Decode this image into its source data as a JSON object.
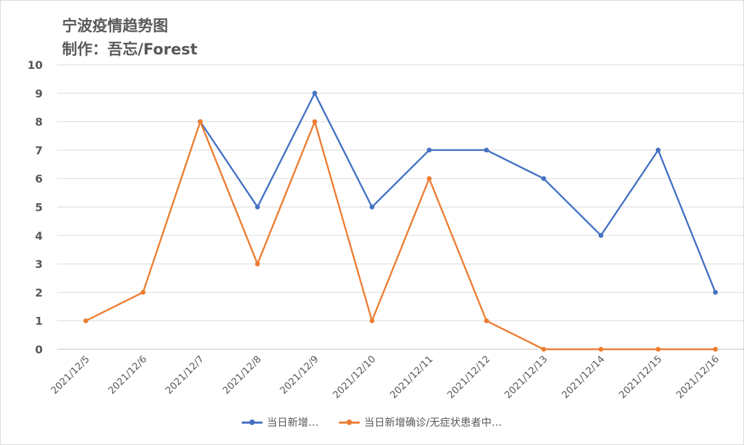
{
  "title": {
    "line1": "宁波疫情趋势图",
    "line2": "制作：吾忘/Forest"
  },
  "chart_data": {
    "type": "line",
    "categories": [
      "2021/12/5",
      "2021/12/6",
      "2021/12/7",
      "2021/12/8",
      "2021/12/9",
      "2021/12/10",
      "2021/12/11",
      "2021/12/12",
      "2021/12/13",
      "2021/12/14",
      "2021/12/15",
      "2021/12/16"
    ],
    "series": [
      {
        "name": "当日新增…",
        "color": "#4472c4",
        "values": [
          null,
          null,
          8,
          5,
          9,
          5,
          7,
          7,
          6,
          4,
          7,
          2
        ]
      },
      {
        "name": "当日新增确诊/无症状患者中…",
        "color": "#ed7d31",
        "values": [
          1,
          2,
          8,
          3,
          8,
          1,
          6,
          1,
          0,
          0,
          0,
          0
        ]
      }
    ],
    "ylim": [
      0,
      10
    ],
    "yticks": [
      0,
      1,
      2,
      3,
      4,
      5,
      6,
      7,
      8,
      9,
      10
    ],
    "grid": true,
    "legend": "bottom"
  }
}
